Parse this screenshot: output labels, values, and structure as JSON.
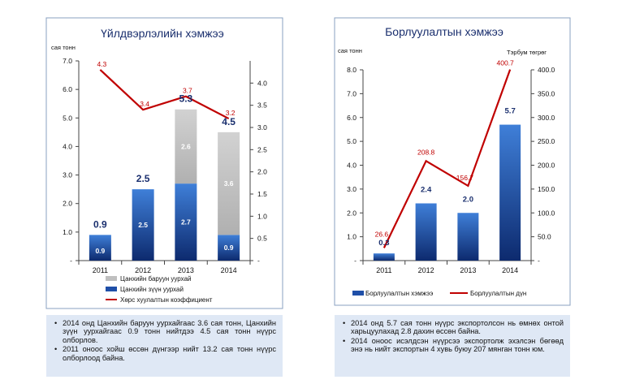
{
  "chart_data": [
    {
      "type": "bar",
      "title": "Үйлдвэрлэлийн хэмжээ",
      "ylabel": "сая тонн",
      "categories": [
        "2011",
        "2012",
        "2013",
        "2014"
      ],
      "ylim": [
        0,
        7.0
      ],
      "y_ticks": [
        "-",
        "1.0",
        "2.0",
        "3.0",
        "4.0",
        "5.0",
        "6.0",
        "7.0"
      ],
      "y2lim": [
        0,
        4.5
      ],
      "y2_ticks": [
        "-",
        "0.5",
        "1.0",
        "1.5",
        "2.0",
        "2.5",
        "3.0",
        "3.5",
        "4.0"
      ],
      "stacked": true,
      "totals": [
        0.9,
        2.5,
        5.3,
        4.5
      ],
      "total_labels": [
        "0.9",
        "2.5",
        "5.3",
        "4.5"
      ],
      "series": [
        {
          "name": "Цанхийн зүүн уурхай",
          "axis": "left",
          "values": [
            0.9,
            2.5,
            2.7,
            0.9
          ],
          "labels": [
            "0.9",
            "2.5",
            "2.7",
            "0.9"
          ],
          "color": "#1f4fa8"
        },
        {
          "name": "Цанхийн баруун уурхай",
          "axis": "left",
          "values": [
            0,
            0,
            2.6,
            3.6
          ],
          "labels": [
            "",
            "",
            "2.6",
            "3.6"
          ],
          "color": "#c0c0c0"
        },
        {
          "name": "Хөрс хуулалтын коэффициент",
          "axis": "right",
          "type": "line",
          "values": [
            4.3,
            3.4,
            3.7,
            3.2
          ],
          "labels": [
            "4.3",
            "3.4",
            "3.7",
            "3.2"
          ],
          "color": "#c00000"
        }
      ],
      "legend": [
        "Цанхийн баруун уурхай",
        "Цанхийн зүүн уурхай",
        "Хөрс хуулалтын коэффициент"
      ],
      "legend_position": "bottom"
    },
    {
      "type": "bar",
      "title": "Борлуулалтын хэмжээ",
      "ylabel": "сая тонн",
      "y2label": "Тэрбум төгрөг",
      "categories": [
        "2011",
        "2012",
        "2013",
        "2014"
      ],
      "ylim": [
        0,
        8.0
      ],
      "y_ticks": [
        "-",
        "1.0",
        "2.0",
        "3.0",
        "4.0",
        "5.0",
        "6.0",
        "7.0",
        "8.0"
      ],
      "y2lim": [
        0,
        400
      ],
      "y2_ticks": [
        "-",
        "50.0",
        "100.0",
        "150.0",
        "200.0",
        "250.0",
        "300.0",
        "350.0",
        "400.0"
      ],
      "series": [
        {
          "name": "Борлуулалтын хэмжээ",
          "axis": "left",
          "values": [
            0.3,
            2.4,
            2.0,
            5.7
          ],
          "labels": [
            "0.3",
            "2.4",
            "2.0",
            "5.7"
          ],
          "color": "#1f4fa8"
        },
        {
          "name": "Борлуулалтын дүн",
          "axis": "right",
          "type": "line",
          "values": [
            26.6,
            208.8,
            156.7,
            400.7
          ],
          "labels": [
            "26.6",
            "208.8",
            "156.7",
            "400.7"
          ],
          "color": "#c00000"
        }
      ],
      "legend": [
        "Борлуулалтын хэмжээ",
        "Борлуулалтын дүн"
      ],
      "legend_position": "bottom"
    }
  ],
  "notes_left": [
    "2014 онд Цанхийн баруун уурхайгаас 3.6 сая тонн, Цанхийн зүүн уурхайгаас 0.9 тонн нийтдээ 4.5 сая тонн нүүрс олборлов.",
    "2011 оноос хойш өссөн дүнгээр нийт 13.2 сая тонн нүүрс олборлоод байна."
  ],
  "notes_right": [
    "2014 онд 5.7 сая тонн нүүрс экспортолсон нь өмнөх онтой харьцуулахад 2.8 дахин өссөн байна.",
    "2014 оноос исэлдсэн нүүрсээ экспортолж эхэлсэн бөгөөд энэ нь нийт экспортын 4 хувь буюу 207 мянган тонн юм."
  ]
}
